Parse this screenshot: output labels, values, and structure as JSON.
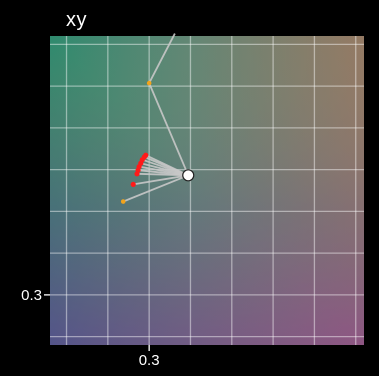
{
  "panel": {
    "title": "xy"
  },
  "colors": {
    "background": "#000000",
    "grid": "#ffffff",
    "path_line": "#c8c8c8",
    "point_red": "#ff1a1a",
    "point_orange": "#f2a31b",
    "white_point": "#ffffff"
  },
  "chart_data": {
    "type": "scatter",
    "title": "xy",
    "xlabel": "",
    "ylabel": "",
    "xlim": [
      0.18,
      0.56
    ],
    "ylim": [
      0.24,
      0.61
    ],
    "grid": true,
    "x_ticks": [
      0.3
    ],
    "y_ticks": [
      0.3
    ],
    "x_tick_labels": [
      "0.3"
    ],
    "y_tick_labels": [
      "0.3"
    ],
    "white_point": {
      "x": 0.3473,
      "y": 0.4432
    },
    "series": [
      {
        "values": [
          {
            "x": 0.2959,
            "y": 0.4673
          },
          {
            "x": 0.2942,
            "y": 0.4651
          },
          {
            "x": 0.2917,
            "y": 0.4619
          },
          {
            "x": 0.2899,
            "y": 0.4577
          },
          {
            "x": 0.2878,
            "y": 0.4535
          },
          {
            "x": 0.2866,
            "y": 0.4493
          },
          {
            "x": 0.2853,
            "y": 0.445
          },
          {
            "x": 0.2807,
            "y": 0.4323
          }
        ]
      },
      {
        "values": [
          {
            "x": 0.2686,
            "y": 0.4118
          },
          {
            "x": 0.3,
            "y": 0.5536
          }
        ]
      }
    ],
    "extra_segments": [
      {
        "from": {
          "x": 0.3,
          "y": 0.5536
        },
        "to": {
          "x": 0.3311,
          "y": 0.6129
        }
      }
    ]
  }
}
